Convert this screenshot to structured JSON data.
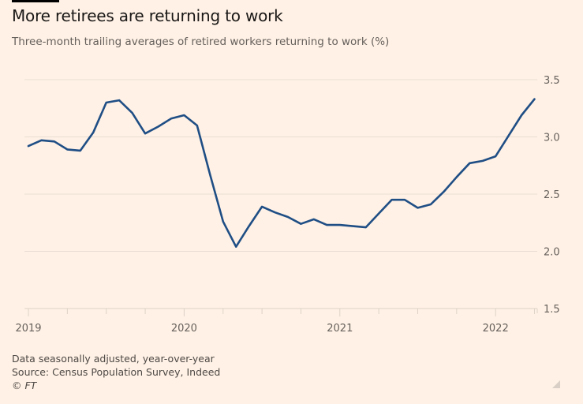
{
  "header": {
    "title": "More retirees are returning to work",
    "subtitle": "Three-month trailing averages of retired workers returning to work (%)"
  },
  "footer": {
    "note": "Data seasonally adjusted, year-over-year",
    "source": "Source: Census Population Survey, Indeed",
    "copyright": "© FT"
  },
  "colors": {
    "background": "#FFF1E5",
    "line": "#1F4E85",
    "grid": "#E9DED4",
    "text": "#66605c"
  },
  "chart_data": {
    "type": "line",
    "title": "More retirees are returning to work",
    "subtitle": "Three-month trailing averages of retired workers returning to work (%)",
    "xlabel": "",
    "ylabel": "",
    "x_start": "2019-01",
    "x_end": "2022-04",
    "x_frequency": "monthly",
    "x_tick_labels": [
      "2019",
      "2020",
      "2021",
      "2022"
    ],
    "y_tick_labels": [
      "1.5",
      "2.0",
      "2.5",
      "3.0",
      "3.5"
    ],
    "y_ticks": [
      1.5,
      2.0,
      2.5,
      3.0,
      3.5
    ],
    "ylim": [
      1.5,
      3.5
    ],
    "grid": true,
    "y_axis_side": "right",
    "legend": "none",
    "series": [
      {
        "name": "Retired workers returning to work (%)",
        "values": [
          2.92,
          2.97,
          2.96,
          2.89,
          2.88,
          3.04,
          3.3,
          3.32,
          3.21,
          3.03,
          3.09,
          3.16,
          3.19,
          3.1,
          2.67,
          2.26,
          2.04,
          2.22,
          2.39,
          2.34,
          2.3,
          2.24,
          2.28,
          2.23,
          2.23,
          2.22,
          2.21,
          2.33,
          2.45,
          2.45,
          2.38,
          2.41,
          2.52,
          2.65,
          2.77,
          2.79,
          2.83,
          3.01,
          3.19,
          3.33
        ]
      }
    ]
  }
}
